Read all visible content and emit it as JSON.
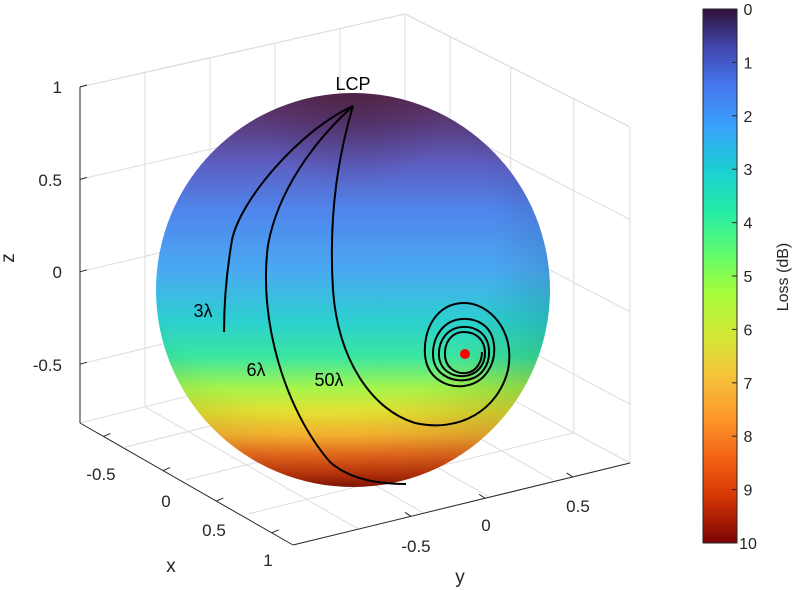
{
  "chart_data": {
    "type": "surface3d",
    "title": "",
    "axes": {
      "x": {
        "label": "x",
        "ticks": [
          "-0.5",
          "0",
          "0.5",
          "1"
        ]
      },
      "y": {
        "label": "y",
        "ticks": [
          "-0.5",
          "0",
          "0.5"
        ]
      },
      "z": {
        "label": "z",
        "ticks": [
          "1",
          "0.5",
          "0",
          "-0.5"
        ]
      }
    },
    "grid": true,
    "surface": {
      "shape": "unit sphere",
      "color_by": "loss"
    },
    "colorbar": {
      "label": "Loss (dB)",
      "range": [
        0,
        10
      ],
      "ticks": [
        "0",
        "1",
        "2",
        "3",
        "4",
        "5",
        "6",
        "7",
        "8",
        "9",
        "10"
      ],
      "colormap": "turbo",
      "reversed": true
    },
    "annotations": [
      {
        "id": "lcp",
        "text": "LCP"
      },
      {
        "id": "3l",
        "text": "3λ"
      },
      {
        "id": "6l",
        "text": "6λ"
      },
      {
        "id": "50l",
        "text": "50λ"
      }
    ],
    "series": [
      {
        "name": "3λ",
        "start": "LCP",
        "end_z": -0.25
      },
      {
        "name": "6λ",
        "start": "LCP",
        "end_z": -0.95
      },
      {
        "name": "50λ",
        "start": "LCP",
        "end": "spiral to marker"
      }
    ],
    "marker": {
      "color": "#ff0000"
    },
    "colors": {
      "curve": "#000000",
      "marker": "#ff0000",
      "grid": "#dcdcdc",
      "box": "#262626"
    }
  }
}
